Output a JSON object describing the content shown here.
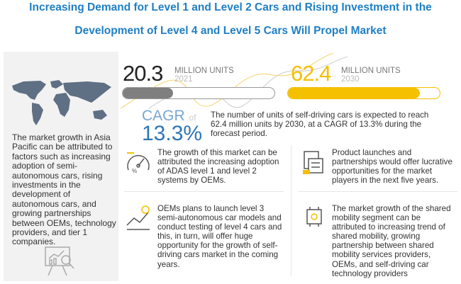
{
  "title": {
    "line1": "Increasing Demand for Level 1 and Level 2 Cars and Rising Investment in the",
    "line2": "Development of Level 4 and Level 5 Cars Will Propel Market"
  },
  "colors": {
    "title": "#1f7fc4",
    "accent_yellow": "#f5c000",
    "bar_gray": "#7f7f7f",
    "cagr_blue": "#2e75b6"
  },
  "region_panel": {
    "map_icon": "world-map-icon",
    "text": "The market growth in Asia Pacific can be attributed to factors such as increasing adoption of semi-autonomous cars, rising investments in the development of autonomous cars, and growing partnerships between OEMs, technology providers, and tier 1 companies.",
    "bottom_icon": "analytics-presentation-icon"
  },
  "stats": {
    "start": {
      "value": "20.3",
      "unit": "MILLION UNITS",
      "year": "2021",
      "bar_fill_percent": 33
    },
    "end": {
      "value": "62.4",
      "unit": "MILLION UNITS",
      "year": "2030",
      "bar_fill_percent": 87
    },
    "cagr": {
      "label": "CAGR",
      "of": "of",
      "value": "13.3%"
    },
    "description": "The number of units of self-driving cars is expected to reach 62.4 million units by 2030, at a CAGR of 13.3% during the forecast period."
  },
  "insights": [
    {
      "icon": "adas-gauge-icon",
      "text": "The growth of this market can be attributed the increasing adoption of ADAS level 1 and level 2 systems by OEMs."
    },
    {
      "icon": "product-launch-icon",
      "text": "Product launches and partnerships would offer lucrative opportunities for the market players in the next five years."
    },
    {
      "icon": "growth-chart-icon",
      "text": "OEMs plans to launch level 3 semi-autonomous car models and conduct testing of level 4 cars and this, in turn, will offer huge opportunity for the growth of self-driving cars market in the coming years."
    },
    {
      "icon": "shared-mobility-chip-icon",
      "text": "The market growth of the shared mobility segment can be attributed to increasing trend of shared mobility, growing partnership between shared mobility services providers, OEMs, and self-driving car technology providers"
    }
  ]
}
